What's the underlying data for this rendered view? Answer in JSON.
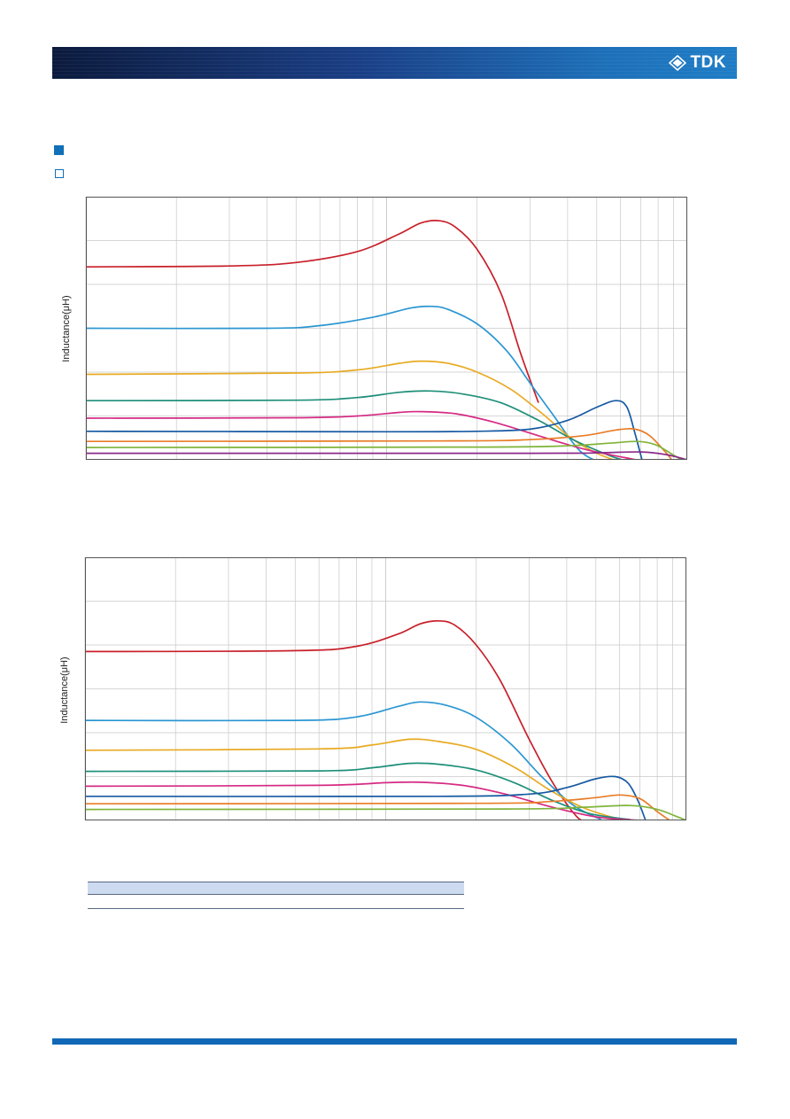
{
  "brand": {
    "logo_text": "TDK"
  },
  "colors": {
    "header_dark": "#0b1a3d",
    "header_light": "#1f7dc6",
    "accent": "#1170b8",
    "grid": "#c8c8c8",
    "table_header": "#cddaf0"
  },
  "icons": [
    "tdk-logo-icon",
    "section-bullet-filled-icon",
    "section-bullet-hollow-icon"
  ],
  "chart_data": [
    {
      "type": "line",
      "ylabel": "Inductance(μH)",
      "xscale": "log",
      "x_decades": [
        100,
        1000,
        10000
      ],
      "xlim": [
        100,
        10000
      ],
      "ylim": [
        0,
        6
      ],
      "grid": true,
      "series": [
        {
          "color": "#c8202a",
          "points": [
            [
              100,
              4.4
            ],
            [
              300,
              4.42
            ],
            [
              500,
              4.5
            ],
            [
              800,
              4.75
            ],
            [
              1100,
              5.15
            ],
            [
              1300,
              5.4
            ],
            [
              1500,
              5.45
            ],
            [
              1700,
              5.3
            ],
            [
              2000,
              4.8
            ],
            [
              2400,
              3.8
            ],
            [
              2800,
              2.4
            ],
            [
              3200,
              1.3
            ]
          ]
        },
        {
          "color": "#2a96d2",
          "points": [
            [
              100,
              3.0
            ],
            [
              400,
              3.0
            ],
            [
              600,
              3.06
            ],
            [
              900,
              3.25
            ],
            [
              1200,
              3.46
            ],
            [
              1400,
              3.5
            ],
            [
              1600,
              3.43
            ],
            [
              2000,
              3.1
            ],
            [
              2500,
              2.5
            ],
            [
              3000,
              1.75
            ],
            [
              3600,
              1.0
            ],
            [
              4400,
              0.2
            ],
            [
              5300,
              -0.1
            ]
          ]
        },
        {
          "color": "#e8aa22",
          "points": [
            [
              100,
              1.95
            ],
            [
              500,
              1.98
            ],
            [
              800,
              2.05
            ],
            [
              1100,
              2.2
            ],
            [
              1300,
              2.25
            ],
            [
              1600,
              2.2
            ],
            [
              2000,
              2.0
            ],
            [
              2600,
              1.6
            ],
            [
              3300,
              1.05
            ],
            [
              4100,
              0.5
            ],
            [
              5000,
              0.15
            ],
            [
              6000,
              -0.05
            ]
          ]
        },
        {
          "color": "#1e8f79",
          "points": [
            [
              100,
              1.35
            ],
            [
              500,
              1.36
            ],
            [
              800,
              1.42
            ],
            [
              1100,
              1.54
            ],
            [
              1400,
              1.57
            ],
            [
              1800,
              1.5
            ],
            [
              2400,
              1.3
            ],
            [
              3200,
              0.9
            ],
            [
              4200,
              0.45
            ],
            [
              5500,
              0.1
            ],
            [
              6400,
              -0.05
            ]
          ]
        },
        {
          "color": "#d52a83",
          "points": [
            [
              100,
              0.95
            ],
            [
              500,
              0.96
            ],
            [
              800,
              1.0
            ],
            [
              1100,
              1.08
            ],
            [
              1300,
              1.1
            ],
            [
              1700,
              1.05
            ],
            [
              2300,
              0.85
            ],
            [
              3200,
              0.55
            ],
            [
              4500,
              0.25
            ],
            [
              6200,
              0.05
            ],
            [
              7400,
              -0.05
            ]
          ]
        },
        {
          "color": "#1659a2",
          "points": [
            [
              100,
              0.65
            ],
            [
              1000,
              0.64
            ],
            [
              2000,
              0.65
            ],
            [
              3000,
              0.7
            ],
            [
              4000,
              0.9
            ],
            [
              5000,
              1.2
            ],
            [
              5800,
              1.35
            ],
            [
              6300,
              1.2
            ],
            [
              6700,
              0.6
            ],
            [
              7100,
              -0.05
            ]
          ]
        },
        {
          "color": "#e87d28",
          "points": [
            [
              100,
              0.42
            ],
            [
              1500,
              0.43
            ],
            [
              3000,
              0.46
            ],
            [
              4500,
              0.55
            ],
            [
              5800,
              0.68
            ],
            [
              6700,
              0.7
            ],
            [
              7500,
              0.55
            ],
            [
              8400,
              0.2
            ],
            [
              9000,
              -0.05
            ]
          ]
        },
        {
          "color": "#7fb43a",
          "points": [
            [
              100,
              0.28
            ],
            [
              2000,
              0.29
            ],
            [
              4000,
              0.32
            ],
            [
              5500,
              0.38
            ],
            [
              6800,
              0.42
            ],
            [
              7800,
              0.35
            ],
            [
              8800,
              0.15
            ],
            [
              9800,
              -0.05
            ]
          ]
        },
        {
          "color": "#8a2a8a",
          "points": [
            [
              100,
              0.15
            ],
            [
              3000,
              0.15
            ],
            [
              5000,
              0.16
            ],
            [
              7000,
              0.18
            ],
            [
              8500,
              0.12
            ],
            [
              10000,
              0.0
            ]
          ]
        }
      ]
    },
    {
      "type": "line",
      "ylabel": "Inductance(μH)",
      "xscale": "log",
      "x_decades": [
        100,
        1000,
        10000
      ],
      "xlim": [
        100,
        10000
      ],
      "ylim": [
        0,
        6
      ],
      "grid": true,
      "series": [
        {
          "color": "#c8202a",
          "points": [
            [
              100,
              3.85
            ],
            [
              500,
              3.87
            ],
            [
              800,
              3.97
            ],
            [
              1100,
              4.25
            ],
            [
              1300,
              4.48
            ],
            [
              1500,
              4.55
            ],
            [
              1700,
              4.45
            ],
            [
              2000,
              4.0
            ],
            [
              2400,
              3.2
            ],
            [
              3000,
              1.85
            ],
            [
              3600,
              0.85
            ],
            [
              4300,
              0.1
            ],
            [
              4700,
              -0.05
            ]
          ]
        },
        {
          "color": "#2a96d2",
          "points": [
            [
              100,
              2.28
            ],
            [
              500,
              2.28
            ],
            [
              800,
              2.36
            ],
            [
              1100,
              2.6
            ],
            [
              1300,
              2.7
            ],
            [
              1600,
              2.62
            ],
            [
              2000,
              2.35
            ],
            [
              2600,
              1.75
            ],
            [
              3300,
              1.0
            ],
            [
              4200,
              0.35
            ],
            [
              5200,
              0.02
            ]
          ]
        },
        {
          "color": "#e8aa22",
          "points": [
            [
              100,
              1.6
            ],
            [
              600,
              1.63
            ],
            [
              900,
              1.72
            ],
            [
              1200,
              1.85
            ],
            [
              1500,
              1.8
            ],
            [
              2000,
              1.62
            ],
            [
              2700,
              1.2
            ],
            [
              3500,
              0.7
            ],
            [
              4500,
              0.3
            ],
            [
              6000,
              0.02
            ]
          ]
        },
        {
          "color": "#1e8f79",
          "points": [
            [
              100,
              1.12
            ],
            [
              600,
              1.13
            ],
            [
              900,
              1.2
            ],
            [
              1200,
              1.3
            ],
            [
              1500,
              1.28
            ],
            [
              2000,
              1.15
            ],
            [
              2700,
              0.85
            ],
            [
              3600,
              0.45
            ],
            [
              4800,
              0.15
            ],
            [
              6500,
              0.02
            ]
          ]
        },
        {
          "color": "#d52a83",
          "points": [
            [
              100,
              0.78
            ],
            [
              600,
              0.8
            ],
            [
              1000,
              0.86
            ],
            [
              1300,
              0.87
            ],
            [
              1800,
              0.8
            ],
            [
              2500,
              0.6
            ],
            [
              3500,
              0.32
            ],
            [
              5000,
              0.08
            ],
            [
              7000,
              0.0
            ]
          ]
        },
        {
          "color": "#1659a2",
          "points": [
            [
              100,
              0.55
            ],
            [
              1500,
              0.55
            ],
            [
              3000,
              0.6
            ],
            [
              4000,
              0.75
            ],
            [
              5000,
              0.95
            ],
            [
              5800,
              1.0
            ],
            [
              6400,
              0.85
            ],
            [
              6900,
              0.45
            ],
            [
              7300,
              0.02
            ]
          ]
        },
        {
          "color": "#e87d28",
          "points": [
            [
              100,
              0.38
            ],
            [
              2000,
              0.39
            ],
            [
              3500,
              0.43
            ],
            [
              5000,
              0.52
            ],
            [
              6000,
              0.58
            ],
            [
              7000,
              0.5
            ],
            [
              8000,
              0.2
            ],
            [
              8800,
              0.0
            ]
          ]
        },
        {
          "color": "#7fb43a",
          "points": [
            [
              100,
              0.25
            ],
            [
              2500,
              0.26
            ],
            [
              4500,
              0.3
            ],
            [
              6500,
              0.34
            ],
            [
              8000,
              0.25
            ],
            [
              9200,
              0.1
            ],
            [
              10000,
              0.0
            ]
          ]
        }
      ]
    }
  ]
}
